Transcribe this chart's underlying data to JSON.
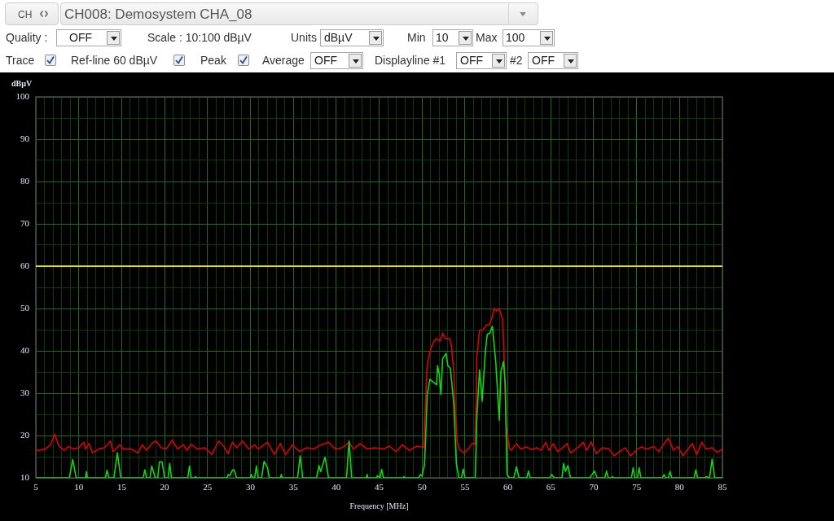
{
  "chart_data": {
    "type": "line",
    "title": "CH008: Demosystem CHA_08",
    "xlabel": "Frequency [MHz]",
    "ylabel": "dBµV",
    "annotations": [
      "CH",
      "Quality :",
      "OFF",
      "Scale : 10:100 dBµV",
      "Units",
      "dBµV",
      "Min",
      "10",
      "Max",
      "100",
      "Trace",
      "Ref-line 60 dBµV",
      "Peak",
      "Average",
      "OFF",
      "Displayline #1",
      "OFF",
      "#2",
      "OFF"
    ],
    "series": [
      {
        "color": "#10d810",
        "x": [
          5,
          8.9,
          9.3,
          9.7,
          10.8,
          10.9,
          11,
          13.1,
          13.3,
          13.5,
          14.1,
          14.5,
          14.9,
          17.5,
          17.7,
          17.9,
          18.3,
          18.5,
          18.7,
          18.9,
          19.2,
          19.4,
          19.7,
          20,
          20.4,
          20.6,
          20.8,
          22.7,
          22.9,
          23.1,
          23.5,
          23.6,
          23.7,
          27.3,
          27.4,
          27.6,
          27.9,
          28.1,
          28.4,
          30,
          30.1,
          30.3,
          30.5,
          30.7,
          30.9,
          31.3,
          31.6,
          32,
          32.2,
          33.5,
          33.6,
          33.7,
          35.5,
          35.8,
          36.1,
          37.7,
          38,
          38.2,
          38.7,
          39.1,
          41.2,
          41.5,
          41.8,
          43.5,
          43.6,
          43.7,
          44.7,
          44.8,
          45.1,
          45.3,
          45.5,
          47.8,
          47.9,
          48,
          49.6,
          49.8,
          50,
          50.3,
          50.6,
          50.9,
          51.3,
          51.7,
          51.8,
          52,
          52.2,
          52.4,
          52.8,
          53,
          53.3,
          53.7,
          54,
          54.3,
          54.6,
          54.8,
          55,
          56.2,
          56.4,
          56.7,
          57,
          57.4,
          57.6,
          57.9,
          58.2,
          58.6,
          59,
          59.2,
          59.5,
          59.7,
          59.9,
          60.2,
          60.7,
          61,
          61.3,
          62.2,
          62.4,
          62.6,
          64.9,
          65.1,
          65.4,
          66.3,
          66.5,
          66.7,
          67,
          67.3,
          69.6,
          69.7,
          70.1,
          70.4,
          71.3,
          71.5,
          71.7,
          72.1,
          72.2,
          72.3,
          74.4,
          74.6,
          74.8,
          75.1,
          75.3,
          75.5,
          78,
          78.2,
          78.4,
          78.7,
          78.9,
          79.1,
          81.7,
          81.9,
          82.1,
          83,
          83.1,
          83.5,
          83.8,
          84.1,
          85
        ],
        "values": [
          10,
          10,
          14.3,
          10,
          10,
          11.5,
          10,
          10,
          11.8,
          10,
          10,
          15.9,
          10,
          10,
          11.9,
          10,
          10,
          12.8,
          11.5,
          10,
          10,
          13.8,
          13.8,
          10,
          10,
          13.4,
          10,
          10,
          12.8,
          10,
          10,
          10.3,
          10,
          10,
          10.8,
          10.5,
          11.8,
          11.9,
          10,
          10,
          10.8,
          10,
          10,
          12.8,
          10,
          10,
          13.9,
          12.4,
          10,
          10,
          10.8,
          10,
          10,
          15.2,
          10,
          10,
          12.9,
          11.5,
          14.9,
          10,
          10,
          18.7,
          10,
          10,
          10.8,
          10,
          10,
          10.5,
          10,
          12,
          10,
          10,
          10.3,
          10,
          10,
          10.8,
          10.4,
          13.3,
          29.4,
          33.3,
          32.6,
          32,
          36.5,
          34.6,
          29.7,
          38.1,
          39.4,
          36.5,
          35.9,
          27.5,
          13.3,
          10,
          10,
          12.1,
          10,
          10,
          24.9,
          35.5,
          28.1,
          40.4,
          43.9,
          44.2,
          45.8,
          37.1,
          23.6,
          35.2,
          37.5,
          32,
          10.8,
          10,
          10,
          12.6,
          10,
          10,
          11.6,
          10,
          10,
          10.8,
          10,
          10,
          13.4,
          11.5,
          12.9,
          10,
          10,
          10.5,
          11.6,
          10,
          10,
          11.6,
          10,
          10,
          10.3,
          10,
          10,
          12.4,
          10,
          10,
          12.4,
          10,
          10,
          10.8,
          10,
          10,
          11.5,
          10,
          10,
          11.9,
          10,
          10,
          10.3,
          10,
          14.4,
          10,
          10
        ]
      },
      {
        "color": "#e00000",
        "x": [
          5,
          6.1,
          6.7,
          7.2,
          7.7,
          8.3,
          8.8,
          9.4,
          10,
          10.6,
          10.8,
          11.2,
          11.6,
          12.3,
          13,
          13.7,
          14,
          14.8,
          15.2,
          16.1,
          16.9,
          17.4,
          17.9,
          18.5,
          19,
          19.6,
          20.2,
          20.9,
          21.5,
          22.2,
          22.6,
          23.1,
          23.8,
          24.7,
          25.5,
          26.3,
          26.9,
          27.4,
          27.9,
          28.4,
          29.1,
          29.8,
          30.5,
          30.9,
          32,
          32.8,
          33.5,
          34.1,
          34.9,
          35.7,
          36.6,
          37.4,
          38.2,
          39.1,
          39.9,
          40.7,
          41.5,
          42,
          42.8,
          43.6,
          44.5,
          45.5,
          46.2,
          47,
          47.7,
          48.5,
          49.4,
          50.2,
          50.3,
          50.6,
          50.8,
          51.1,
          51.4,
          51.7,
          52.1,
          52.4,
          52.7,
          53.2,
          53.4,
          53.7,
          53.9,
          54.1,
          54.4,
          54.9,
          55.4,
          55.9,
          56.2,
          56.4,
          56.7,
          57.1,
          57.5,
          57.8,
          58.1,
          58.4,
          58.7,
          59,
          59.4,
          59.6,
          59.8,
          60.2,
          60.4,
          61,
          61.5,
          62.1,
          62.8,
          63.4,
          63.9,
          64.4,
          64.8,
          65.3,
          65.8,
          66.2,
          66.9,
          67.3,
          68.1,
          68.8,
          69.2,
          69.7,
          70.3,
          71,
          71.8,
          72.4,
          73,
          73.7,
          74.3,
          75.1,
          75.6,
          76.2,
          77,
          77.6,
          78.1,
          78.7,
          79.3,
          79.8,
          80.4,
          81.1,
          81.5,
          82,
          82.6,
          83.1,
          83.8,
          84.4,
          85
        ],
        "values": [
          16.4,
          16.8,
          17.8,
          20.3,
          17.5,
          16.5,
          17.4,
          16.8,
          17.1,
          18.4,
          16.8,
          18.1,
          15.9,
          16.8,
          17.1,
          18.7,
          16.2,
          17.8,
          16.8,
          16.8,
          15.9,
          17.8,
          16.5,
          18.1,
          18.7,
          17.1,
          16.8,
          18.9,
          16.8,
          17.8,
          16.5,
          17.9,
          16.8,
          17.1,
          15.5,
          18.7,
          17.5,
          15.7,
          18.4,
          17.1,
          18.7,
          16.8,
          17.8,
          16.8,
          18.4,
          15.5,
          18.1,
          15.5,
          17.8,
          16.2,
          17.1,
          16.8,
          17.8,
          18.4,
          16.8,
          17.1,
          18.4,
          16.8,
          18.1,
          16.8,
          17.1,
          16.8,
          17.5,
          16.2,
          17.8,
          16.5,
          17.5,
          17.2,
          23,
          36.5,
          38.7,
          41,
          42.3,
          42.9,
          42.3,
          44.2,
          42.9,
          42.9,
          41.6,
          35.2,
          24.9,
          18.5,
          16.6,
          15.9,
          16.9,
          18.2,
          17.9,
          39,
          44.9,
          44.9,
          46.1,
          46.1,
          47.4,
          50,
          49.4,
          50,
          47.4,
          35.9,
          22.3,
          16.9,
          16.5,
          18.1,
          16.8,
          17.3,
          16.7,
          17.1,
          16.5,
          18.4,
          16.5,
          18.1,
          16.2,
          16.8,
          18.1,
          15.9,
          17.1,
          18.4,
          16.5,
          18.5,
          15.7,
          17.1,
          16.8,
          15.2,
          16.2,
          17.1,
          15.2,
          16.8,
          17.3,
          16.8,
          17.4,
          16.2,
          17.8,
          19.4,
          16.5,
          17.4,
          15.2,
          17.1,
          18.1,
          15.5,
          18.4,
          16.8,
          17.1,
          16,
          16.8
        ]
      }
    ],
    "xlim": [
      5,
      85
    ],
    "xticks": [
      5,
      {
        "value": 6,
        "label": null
      },
      {
        "value": 7,
        "label": null
      },
      {
        "value": 8,
        "label": null
      },
      {
        "value": 9,
        "label": null
      },
      10,
      {
        "value": 11,
        "label": null
      },
      {
        "value": 12,
        "label": null
      },
      {
        "value": 13,
        "label": null
      },
      {
        "value": 14,
        "label": null
      },
      15,
      {
        "value": 16,
        "label": null
      },
      {
        "value": 17,
        "label": null
      },
      {
        "value": 18,
        "label": null
      },
      {
        "value": 19,
        "label": null
      },
      20,
      {
        "value": 21,
        "label": null
      },
      {
        "value": 22,
        "label": null
      },
      {
        "value": 23,
        "label": null
      },
      {
        "value": 24,
        "label": null
      },
      25,
      {
        "value": 26,
        "label": null
      },
      {
        "value": 27,
        "label": null
      },
      {
        "value": 28,
        "label": null
      },
      {
        "value": 29,
        "label": null
      },
      30,
      {
        "value": 31,
        "label": null
      },
      {
        "value": 32,
        "label": null
      },
      {
        "value": 33,
        "label": null
      },
      {
        "value": 34,
        "label": null
      },
      35,
      {
        "value": 36,
        "label": null
      },
      {
        "value": 37,
        "label": null
      },
      {
        "value": 38,
        "label": null
      },
      {
        "value": 39,
        "label": null
      },
      40,
      {
        "value": 41,
        "label": null
      },
      {
        "value": 42,
        "label": null
      },
      {
        "value": 43,
        "label": null
      },
      {
        "value": 44,
        "label": null
      },
      45,
      {
        "value": 46,
        "label": null
      },
      {
        "value": 47,
        "label": null
      },
      {
        "value": 48,
        "label": null
      },
      {
        "value": 49,
        "label": null
      },
      50,
      {
        "value": 51,
        "label": null
      },
      {
        "value": 52,
        "label": null
      },
      {
        "value": 53,
        "label": null
      },
      {
        "value": 54,
        "label": null
      },
      55,
      {
        "value": 56,
        "label": null
      },
      {
        "value": 57,
        "label": null
      },
      {
        "value": 58,
        "label": null
      },
      {
        "value": 59,
        "label": null
      },
      60,
      {
        "value": 61,
        "label": null
      },
      {
        "value": 62,
        "label": null
      },
      {
        "value": 63,
        "label": null
      },
      {
        "value": 64,
        "label": null
      },
      65,
      {
        "value": 66,
        "label": null
      },
      {
        "value": 67,
        "label": null
      },
      {
        "value": 68,
        "label": null
      },
      {
        "value": 69,
        "label": null
      },
      70,
      {
        "value": 71,
        "label": null
      },
      {
        "value": 72,
        "label": null
      },
      {
        "value": 73,
        "label": null
      },
      {
        "value": 74,
        "label": null
      },
      75,
      {
        "value": 76,
        "label": null
      },
      {
        "value": 77,
        "label": null
      },
      {
        "value": 78,
        "label": null
      },
      {
        "value": 79,
        "label": null
      },
      80,
      {
        "value": 81,
        "label": null
      },
      {
        "value": 82,
        "label": null
      },
      {
        "value": 83,
        "label": null
      },
      {
        "value": 84,
        "label": null
      },
      85
    ],
    "ylim": [
      10,
      100
    ],
    "yticks": [
      10,
      {
        "value": 15,
        "label": null
      },
      20,
      {
        "value": 25,
        "label": null
      },
      30,
      {
        "value": 35,
        "label": null
      },
      40,
      {
        "value": 45,
        "label": null
      },
      50,
      {
        "value": 55,
        "label": null
      },
      60,
      {
        "value": 65,
        "label": null
      },
      70,
      {
        "value": 75,
        "label": null
      },
      80,
      {
        "value": 85,
        "label": null
      },
      90,
      {
        "value": 95,
        "label": null
      },
      100
    ],
    "grid": true,
    "ref_lines": [
      {
        "axis": "y",
        "value": 60,
        "color": "#dede1a"
      }
    ]
  }
}
